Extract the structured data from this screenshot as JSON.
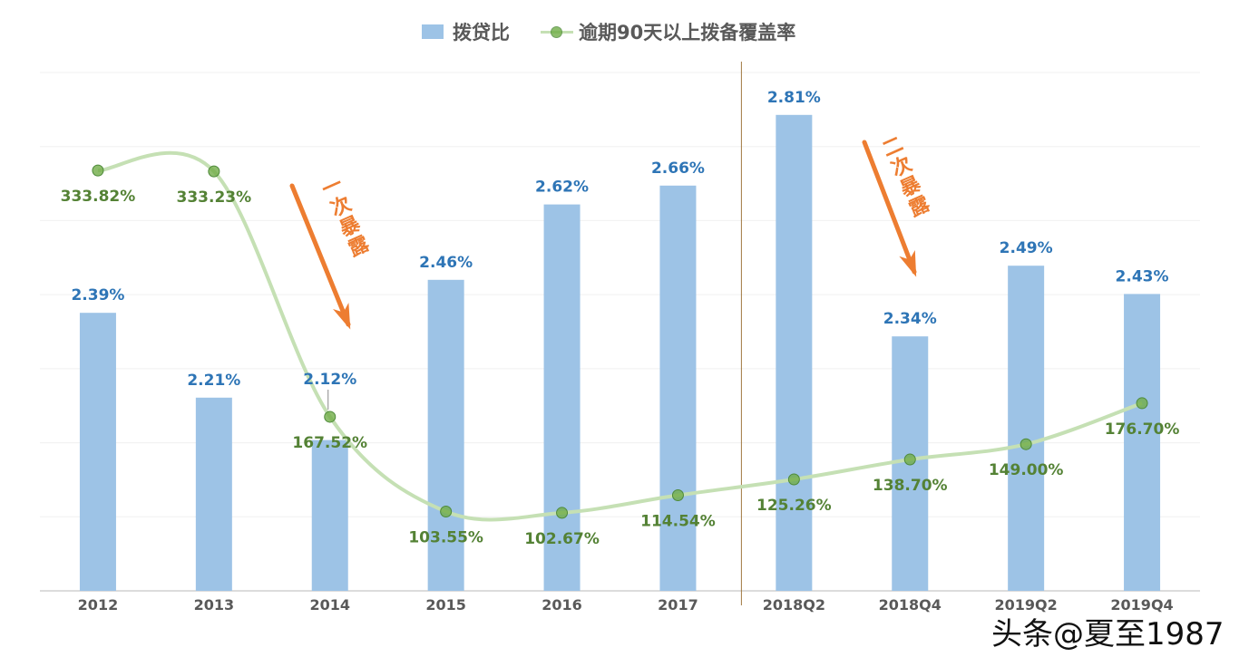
{
  "chart_data": {
    "type": "bar+line",
    "categories": [
      "2012",
      "2013",
      "2014",
      "2015",
      "2016",
      "2017",
      "2018Q2",
      "2018Q4",
      "2019Q2",
      "2019Q4"
    ],
    "series": [
      {
        "name": "拨贷比",
        "type": "bar",
        "axis": "primary",
        "values": [
          2.39,
          2.21,
          2.12,
          2.46,
          2.62,
          2.66,
          2.81,
          2.34,
          2.49,
          2.43
        ],
        "labels": [
          "2.39%",
          "2.21%",
          "2.12%",
          "2.46%",
          "2.62%",
          "2.66%",
          "2.81%",
          "2.34%",
          "2.49%",
          "2.43%"
        ],
        "color": "#9DC3E6",
        "label_color": "#2E75B6"
      },
      {
        "name": "逾期90天以上拨备覆盖率",
        "type": "line",
        "axis": "secondary",
        "smooth": true,
        "values": [
          333.82,
          333.23,
          167.52,
          103.55,
          102.67,
          114.54,
          125.26,
          138.7,
          149.0,
          176.7
        ],
        "labels": [
          "333.82%",
          "333.23%",
          "167.52%",
          "103.55%",
          "102.67%",
          "114.54%",
          "125.26%",
          "138.70%",
          "149.00%",
          "176.70%"
        ],
        "color": "#C5E0B4",
        "marker_color": "#70AD47",
        "label_color": "#548235"
      }
    ],
    "ylim": [
      1.8,
      2.9
    ],
    "y2lim": [
      50,
      400
    ],
    "grid": true,
    "legend": "top",
    "annotations": [
      {
        "text": "一次暴露",
        "color": "#ED7D31"
      },
      {
        "text": "二次暴露",
        "color": "#ED7D31"
      }
    ],
    "divider_after": "2017"
  },
  "watermark": "头条@夏至1987"
}
